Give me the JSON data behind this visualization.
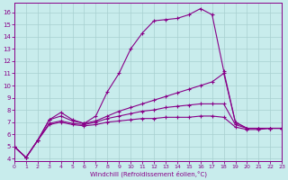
{
  "background_color": "#c8ecec",
  "grid_color": "#a8d0d0",
  "line_color": "#880088",
  "xlabel": "Windchill (Refroidissement éolien,°C)",
  "xlim": [
    0,
    23
  ],
  "ylim": [
    3.8,
    16.8
  ],
  "xticks": [
    0,
    1,
    2,
    3,
    4,
    5,
    6,
    7,
    8,
    9,
    10,
    11,
    12,
    13,
    14,
    15,
    16,
    17,
    18,
    19,
    20,
    21,
    22,
    23
  ],
  "yticks": [
    4,
    5,
    6,
    7,
    8,
    9,
    10,
    11,
    12,
    13,
    14,
    15,
    16
  ],
  "curve1_x": [
    0,
    1,
    2,
    3,
    4,
    5,
    6,
    7,
    8,
    9,
    10,
    11,
    12,
    13,
    14,
    15,
    16,
    17,
    18,
    19,
    20,
    21,
    22,
    23
  ],
  "curve1_y": [
    5.0,
    4.1,
    5.5,
    7.2,
    7.8,
    7.2,
    6.9,
    7.5,
    9.5,
    11.0,
    13.0,
    14.3,
    15.3,
    15.4,
    15.5,
    15.8,
    16.3,
    15.8,
    11.2,
    7.0,
    6.5,
    6.5,
    6.5,
    6.5
  ],
  "curve2_x": [
    0,
    1,
    2,
    3,
    4,
    5,
    6,
    7,
    8,
    9,
    10,
    11,
    12,
    13,
    14,
    15,
    16,
    17,
    18,
    19,
    20,
    21,
    22,
    23
  ],
  "curve2_y": [
    5.0,
    4.1,
    5.5,
    7.2,
    7.5,
    7.1,
    6.9,
    7.1,
    7.5,
    7.9,
    8.2,
    8.5,
    8.8,
    9.1,
    9.4,
    9.7,
    10.0,
    10.3,
    11.0,
    7.0,
    6.5,
    6.5,
    6.5,
    6.5
  ],
  "curve3_x": [
    0,
    1,
    2,
    3,
    4,
    5,
    6,
    7,
    8,
    9,
    10,
    11,
    12,
    13,
    14,
    15,
    16,
    17,
    18,
    19,
    20,
    21,
    22,
    23
  ],
  "curve3_y": [
    5.0,
    4.1,
    5.5,
    6.9,
    7.1,
    6.9,
    6.8,
    7.0,
    7.3,
    7.5,
    7.7,
    7.9,
    8.0,
    8.2,
    8.3,
    8.4,
    8.5,
    8.5,
    8.5,
    6.8,
    6.5,
    6.5,
    6.5,
    6.5
  ],
  "curve4_x": [
    0,
    1,
    2,
    3,
    4,
    5,
    6,
    7,
    8,
    9,
    10,
    11,
    12,
    13,
    14,
    15,
    16,
    17,
    18,
    19,
    20,
    21,
    22,
    23
  ],
  "curve4_y": [
    5.0,
    4.1,
    5.5,
    6.8,
    7.0,
    6.8,
    6.7,
    6.8,
    7.0,
    7.1,
    7.2,
    7.3,
    7.3,
    7.4,
    7.4,
    7.4,
    7.5,
    7.5,
    7.4,
    6.6,
    6.4,
    6.4,
    6.5,
    6.5
  ]
}
